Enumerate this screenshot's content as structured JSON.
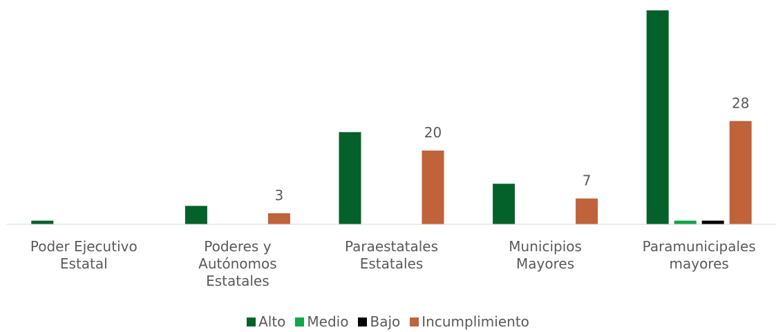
{
  "chart_data": {
    "type": "bar",
    "categories": [
      [
        "Poder Ejecutivo",
        "Estatal"
      ],
      [
        "Poderes y",
        "Autónomos",
        "Estatales"
      ],
      [
        "Paraestatales",
        "Estatales"
      ],
      [
        "Municipios",
        "Mayores"
      ],
      [
        "Paramunicipales",
        "mayores"
      ]
    ],
    "series": [
      {
        "name": "Alto",
        "color": "#05612a",
        "values": [
          1,
          5,
          25,
          11,
          58
        ]
      },
      {
        "name": "Medio",
        "color": "#12a54a",
        "values": [
          null,
          null,
          null,
          null,
          1
        ]
      },
      {
        "name": "Bajo",
        "color": "#000000",
        "values": [
          null,
          null,
          null,
          null,
          1
        ]
      },
      {
        "name": "Incumplimiento",
        "color": "#c0623a",
        "values": [
          null,
          3,
          20,
          7,
          28
        ],
        "show_labels": true
      }
    ],
    "ylim": [
      0,
      58
    ],
    "legend": "bottom"
  }
}
